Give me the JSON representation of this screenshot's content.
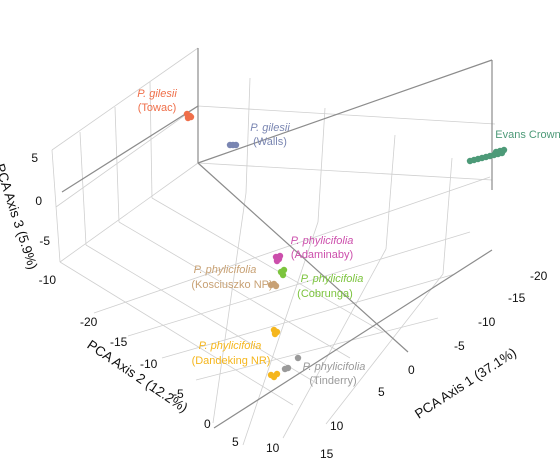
{
  "chart_data": {
    "type": "scatter",
    "projection": "3d",
    "title": "",
    "axes": {
      "x": {
        "label": "PCA Axis 1 (37.1%)",
        "ticks": [
          "-20",
          "-15",
          "-10",
          "-5",
          "0",
          "5",
          "10"
        ]
      },
      "y": {
        "label": "PCA Axis 2 (12.2%)",
        "ticks": [
          "-20",
          "-15",
          "-10",
          "-5",
          "0",
          "5",
          "10",
          "15"
        ]
      },
      "z": {
        "label": "PCA Axis 3 (5.9%)",
        "ticks": [
          "5",
          "0",
          "-5",
          "-10"
        ]
      }
    },
    "grid": true,
    "legend": "none",
    "groups": [
      {
        "species": "P. gilesii",
        "site": "(Towac)",
        "color": "#ef6f4a",
        "n": 4
      },
      {
        "species": "P. gilesii",
        "site": "(Walls)",
        "color": "#7a86b2",
        "n": 3
      },
      {
        "species": "",
        "site": "Evans Crown",
        "color": "#4d9a78",
        "n": 12
      },
      {
        "species": "P. phylicifolia",
        "site": "(Adaminaby)",
        "color": "#cc4fac",
        "n": 4
      },
      {
        "species": "P. phylicifolia",
        "site": "(Kosciuszko NP)",
        "color": "#c8a174",
        "n": 3
      },
      {
        "species": "P. phylicifolia",
        "site": "(Cobrunga)",
        "color": "#7cc43e",
        "n": 3
      },
      {
        "species": "P. phylicifolia",
        "site": "(Dandeking NR)",
        "color": "#f5b61d",
        "n": 6
      },
      {
        "species": "P. phylicifolia",
        "site": "(Tinderry)",
        "color": "#9a9a9a",
        "n": 3
      }
    ]
  }
}
